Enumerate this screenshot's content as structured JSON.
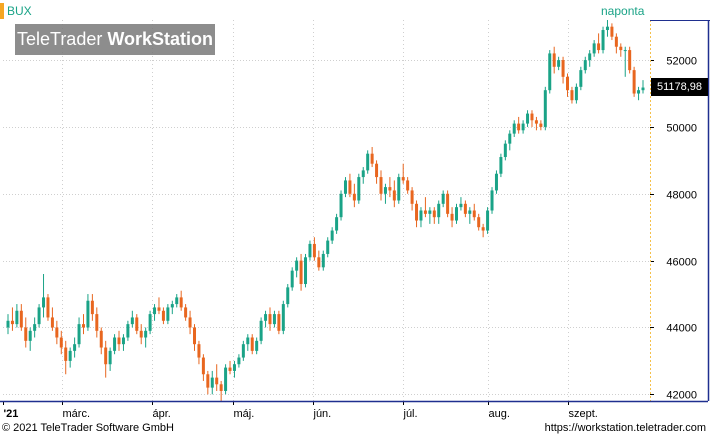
{
  "header": {
    "symbol": "BUX",
    "interval": "naponta",
    "watermark_left": "TeleTrader",
    "watermark_right": "WorkStation"
  },
  "footer": {
    "copyright": "© 2021 TeleTrader Software GmbH",
    "url": "https://workstation.teletrader.com"
  },
  "colors": {
    "up": "#1aa387",
    "down": "#e8661f",
    "accent": "#f5a623",
    "frame": "#1f2f8f",
    "grid": "#cfcfcf",
    "watermark_bg": "#7a7a7a"
  },
  "chart_data": {
    "type": "candlestick",
    "last_price_label": "51178,98",
    "last_price": 51178.98,
    "x_labels": [
      "'21",
      "márc.",
      "ápr.",
      "máj.",
      "jún.",
      "júl.",
      "aug.",
      "szept."
    ],
    "y_ticks": [
      42000,
      44000,
      46000,
      48000,
      50000,
      52000
    ],
    "y_tick_labels": [
      "42000",
      "44000",
      "46000",
      "48000",
      "50000",
      "52000"
    ],
    "ylim": [
      41800,
      53200
    ],
    "grid": true,
    "series": [
      [
        44000,
        44400,
        43800,
        44200
      ],
      [
        44200,
        44600,
        43900,
        44100
      ],
      [
        44100,
        44700,
        44000,
        44500
      ],
      [
        44500,
        44700,
        43900,
        44000
      ],
      [
        44000,
        44300,
        43400,
        43600
      ],
      [
        43600,
        44000,
        43300,
        43900
      ],
      [
        43900,
        44300,
        43700,
        44100
      ],
      [
        44100,
        44700,
        44000,
        44600
      ],
      [
        44600,
        45600,
        44300,
        44900
      ],
      [
        44900,
        45000,
        44200,
        44300
      ],
      [
        44300,
        44600,
        43900,
        44000
      ],
      [
        44000,
        44200,
        43500,
        43700
      ],
      [
        43700,
        43900,
        43200,
        43400
      ],
      [
        43400,
        43600,
        42600,
        43000
      ],
      [
        43000,
        43400,
        42800,
        43300
      ],
      [
        43300,
        43700,
        43100,
        43500
      ],
      [
        43500,
        44300,
        43400,
        44100
      ],
      [
        44100,
        44400,
        43800,
        44000
      ],
      [
        44000,
        45000,
        43900,
        44800
      ],
      [
        44800,
        45000,
        44200,
        44400
      ],
      [
        44400,
        44600,
        43700,
        43900
      ],
      [
        43900,
        44000,
        43200,
        43400
      ],
      [
        43400,
        43600,
        42500,
        42900
      ],
      [
        42900,
        43400,
        42700,
        43300
      ],
      [
        43300,
        43800,
        43200,
        43700
      ],
      [
        43700,
        43900,
        43300,
        43500
      ],
      [
        43500,
        43800,
        43300,
        43700
      ],
      [
        43700,
        44200,
        43600,
        44100
      ],
      [
        44100,
        44500,
        44000,
        44300
      ],
      [
        44300,
        44400,
        43800,
        43900
      ],
      [
        43900,
        44100,
        43500,
        43700
      ],
      [
        43700,
        44000,
        43400,
        43900
      ],
      [
        43900,
        44500,
        43800,
        44400
      ],
      [
        44400,
        44700,
        44200,
        44600
      ],
      [
        44600,
        44900,
        44400,
        44500
      ],
      [
        44500,
        44600,
        44100,
        44200
      ],
      [
        44200,
        44700,
        44100,
        44600
      ],
      [
        44600,
        44800,
        44400,
        44700
      ],
      [
        44700,
        45000,
        44600,
        44900
      ],
      [
        44900,
        45100,
        44500,
        44600
      ],
      [
        44600,
        44700,
        44200,
        44300
      ],
      [
        44300,
        44500,
        43800,
        44000
      ],
      [
        44000,
        44100,
        43300,
        43500
      ],
      [
        43500,
        43600,
        42900,
        43100
      ],
      [
        43100,
        43200,
        42400,
        42600
      ],
      [
        42600,
        42700,
        42000,
        42200
      ],
      [
        42200,
        42700,
        42000,
        42500
      ],
      [
        42500,
        42900,
        42100,
        42300
      ],
      [
        42300,
        42400,
        41800,
        42100
      ],
      [
        42100,
        42900,
        42000,
        42800
      ],
      [
        42800,
        43000,
        42600,
        42700
      ],
      [
        42700,
        43000,
        42500,
        42900
      ],
      [
        42900,
        43200,
        42800,
        43100
      ],
      [
        43100,
        43600,
        43000,
        43500
      ],
      [
        43500,
        43800,
        43300,
        43700
      ],
      [
        43700,
        43800,
        43200,
        43300
      ],
      [
        43300,
        43700,
        43200,
        43600
      ],
      [
        43600,
        44300,
        43500,
        44200
      ],
      [
        44200,
        44500,
        44000,
        44400
      ],
      [
        44400,
        44600,
        43900,
        44100
      ],
      [
        44100,
        44500,
        44000,
        44400
      ],
      [
        44400,
        44500,
        43800,
        43900
      ],
      [
        43900,
        44800,
        43800,
        44700
      ],
      [
        44700,
        45300,
        44600,
        45200
      ],
      [
        45200,
        45800,
        45100,
        45700
      ],
      [
        45700,
        46100,
        45500,
        46000
      ],
      [
        46000,
        46200,
        45100,
        45300
      ],
      [
        45300,
        46200,
        45200,
        46100
      ],
      [
        46100,
        46600,
        46000,
        46500
      ],
      [
        46500,
        46700,
        46000,
        46100
      ],
      [
        46100,
        46300,
        45700,
        45800
      ],
      [
        45800,
        46300,
        45700,
        46200
      ],
      [
        46200,
        46700,
        46100,
        46600
      ],
      [
        46600,
        47000,
        46500,
        46900
      ],
      [
        46900,
        47400,
        46800,
        47300
      ],
      [
        47300,
        48100,
        47200,
        48000
      ],
      [
        48000,
        48500,
        47900,
        48400
      ],
      [
        48400,
        48600,
        47900,
        48000
      ],
      [
        48000,
        48300,
        47600,
        47800
      ],
      [
        47800,
        48600,
        47700,
        48500
      ],
      [
        48500,
        48800,
        48300,
        48700
      ],
      [
        48700,
        49300,
        48600,
        49200
      ],
      [
        49200,
        49400,
        48800,
        48900
      ],
      [
        48900,
        49000,
        48300,
        48500
      ],
      [
        48500,
        48700,
        47800,
        48000
      ],
      [
        48000,
        48300,
        47700,
        48200
      ],
      [
        48200,
        48500,
        47900,
        48100
      ],
      [
        48100,
        48400,
        47600,
        47800
      ],
      [
        47800,
        48600,
        47700,
        48500
      ],
      [
        48500,
        48900,
        48300,
        48400
      ],
      [
        48400,
        48500,
        48000,
        48100
      ],
      [
        48100,
        48200,
        47500,
        47700
      ],
      [
        47700,
        47800,
        47000,
        47200
      ],
      [
        47200,
        47600,
        47000,
        47500
      ],
      [
        47500,
        47900,
        47300,
        47400
      ],
      [
        47400,
        47600,
        47100,
        47500
      ],
      [
        47500,
        47600,
        47100,
        47300
      ],
      [
        47300,
        47800,
        47100,
        47700
      ],
      [
        47700,
        48100,
        47600,
        48000
      ],
      [
        48000,
        48100,
        47300,
        47400
      ],
      [
        47400,
        47600,
        47000,
        47200
      ],
      [
        47200,
        47700,
        47100,
        47600
      ],
      [
        47600,
        47900,
        47500,
        47700
      ],
      [
        47700,
        47800,
        47300,
        47400
      ],
      [
        47400,
        47600,
        47100,
        47500
      ],
      [
        47500,
        47700,
        47200,
        47300
      ],
      [
        47300,
        47400,
        46900,
        47000
      ],
      [
        47000,
        47100,
        46700,
        46900
      ],
      [
        46900,
        47600,
        46800,
        47500
      ],
      [
        47500,
        48200,
        47400,
        48100
      ],
      [
        48100,
        48700,
        48000,
        48600
      ],
      [
        48600,
        49200,
        48500,
        49100
      ],
      [
        49100,
        49600,
        49000,
        49500
      ],
      [
        49500,
        49900,
        49300,
        49800
      ],
      [
        49800,
        50200,
        49700,
        50100
      ],
      [
        50100,
        50300,
        49800,
        49900
      ],
      [
        49900,
        50200,
        49800,
        50100
      ],
      [
        50100,
        50500,
        50000,
        50400
      ],
      [
        50400,
        50500,
        50000,
        50200
      ],
      [
        50200,
        50300,
        49900,
        50100
      ],
      [
        50100,
        50200,
        49900,
        50000
      ],
      [
        50000,
        51200,
        49900,
        51100
      ],
      [
        51100,
        52300,
        51000,
        52200
      ],
      [
        52200,
        52400,
        51600,
        51800
      ],
      [
        51800,
        52100,
        51700,
        52000
      ],
      [
        52000,
        52100,
        51300,
        51500
      ],
      [
        51500,
        51600,
        50900,
        51100
      ],
      [
        51100,
        51200,
        50700,
        50800
      ],
      [
        50800,
        51300,
        50700,
        51200
      ],
      [
        51200,
        51800,
        51100,
        51700
      ],
      [
        51700,
        52100,
        51600,
        52000
      ],
      [
        52000,
        52300,
        51800,
        52200
      ],
      [
        52200,
        52600,
        52100,
        52500
      ],
      [
        52500,
        52800,
        52200,
        52300
      ],
      [
        52300,
        53000,
        52200,
        52900
      ],
      [
        52900,
        53200,
        52700,
        53000
      ],
      [
        53000,
        53100,
        52600,
        52700
      ],
      [
        52700,
        52800,
        52200,
        52400
      ],
      [
        52400,
        52500,
        52100,
        52300
      ],
      [
        52300,
        52400,
        51500,
        52300
      ],
      [
        52300,
        52400,
        51600,
        51700
      ],
      [
        51700,
        51800,
        50900,
        51000
      ],
      [
        51000,
        51200,
        50800,
        51100
      ],
      [
        51100,
        51400,
        51000,
        51179
      ]
    ]
  }
}
